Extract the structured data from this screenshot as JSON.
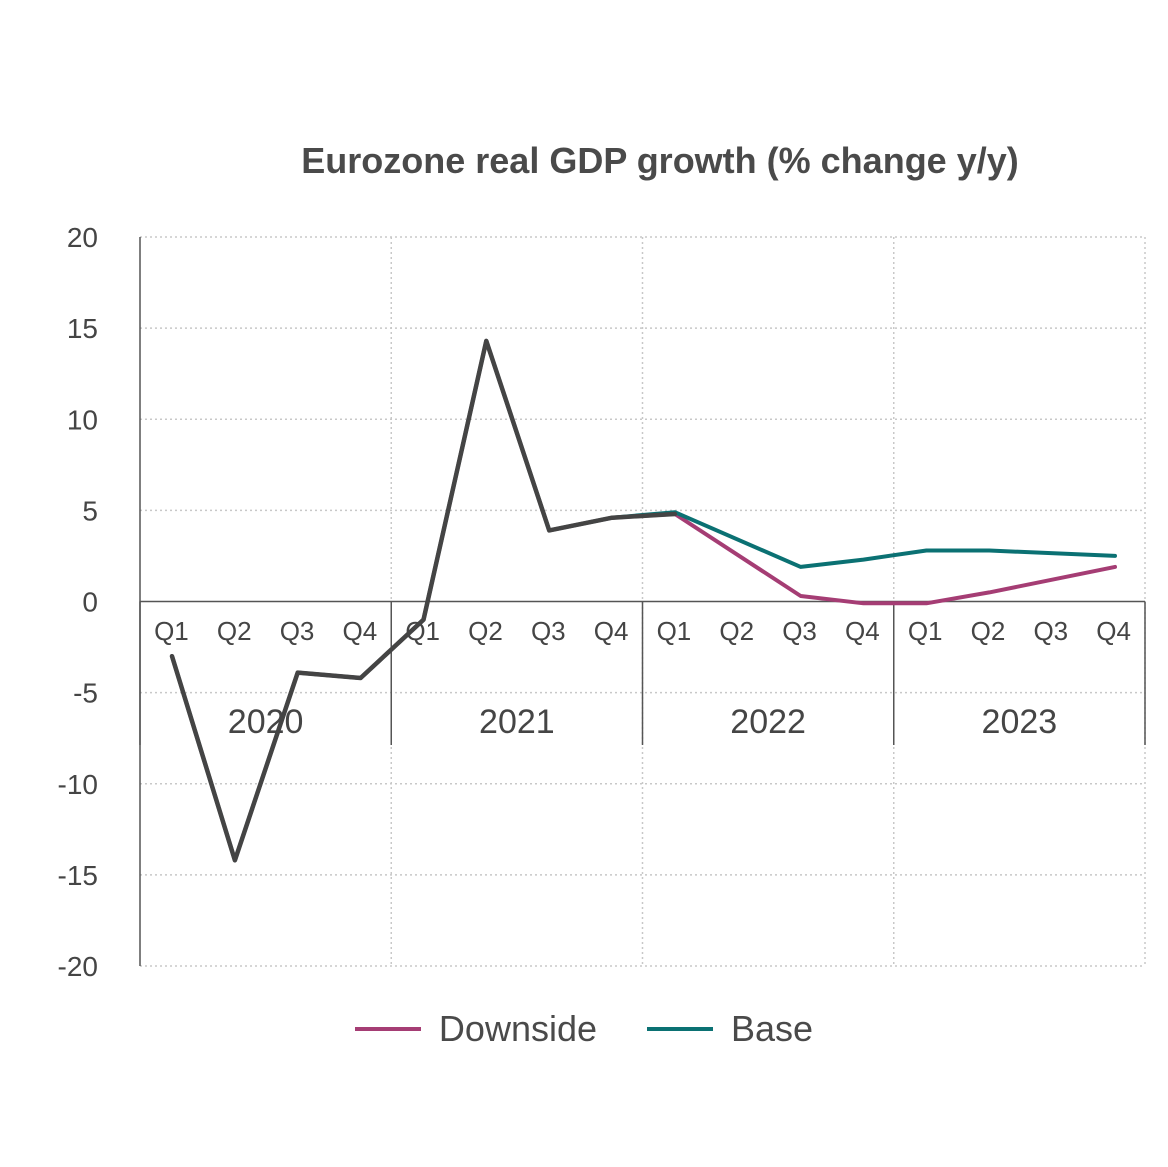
{
  "chart_data": {
    "type": "line",
    "title": "Eurozone real GDP growth (% change y/y)",
    "ylim": [
      -20,
      20
    ],
    "yticks": [
      "20",
      "15",
      "10",
      "5",
      "0",
      "-5",
      "-10",
      "-15",
      "-20"
    ],
    "quarters": [
      "Q1",
      "Q2",
      "Q3",
      "Q4",
      "Q1",
      "Q2",
      "Q3",
      "Q4",
      "Q1",
      "Q2",
      "Q3",
      "Q4",
      "Q1",
      "Q2",
      "Q3",
      "Q4"
    ],
    "years": [
      "2020",
      "2021",
      "2022",
      "2023"
    ],
    "grid": true,
    "legend_position": "bottom",
    "series": [
      {
        "name": "Downside",
        "color": "#a53d74",
        "values": [
          -3.0,
          -14.2,
          -3.9,
          -4.2,
          -1.0,
          14.3,
          3.9,
          4.6,
          4.8,
          null,
          0.3,
          -0.1,
          -0.1,
          0.5,
          null,
          1.9
        ]
      },
      {
        "name": "Base",
        "color": "#0b7173",
        "values": [
          -3.0,
          -14.2,
          -3.9,
          -4.2,
          -1.0,
          14.3,
          3.9,
          4.6,
          4.9,
          null,
          1.9,
          2.3,
          2.8,
          2.8,
          null,
          2.5
        ]
      },
      {
        "name": "",
        "color": "#444444",
        "values": [
          -3.0,
          -14.2,
          -3.9,
          -4.2,
          -1.0,
          14.3,
          3.9,
          4.6,
          4.8,
          null,
          null,
          null,
          null,
          null,
          null,
          null
        ]
      }
    ]
  }
}
